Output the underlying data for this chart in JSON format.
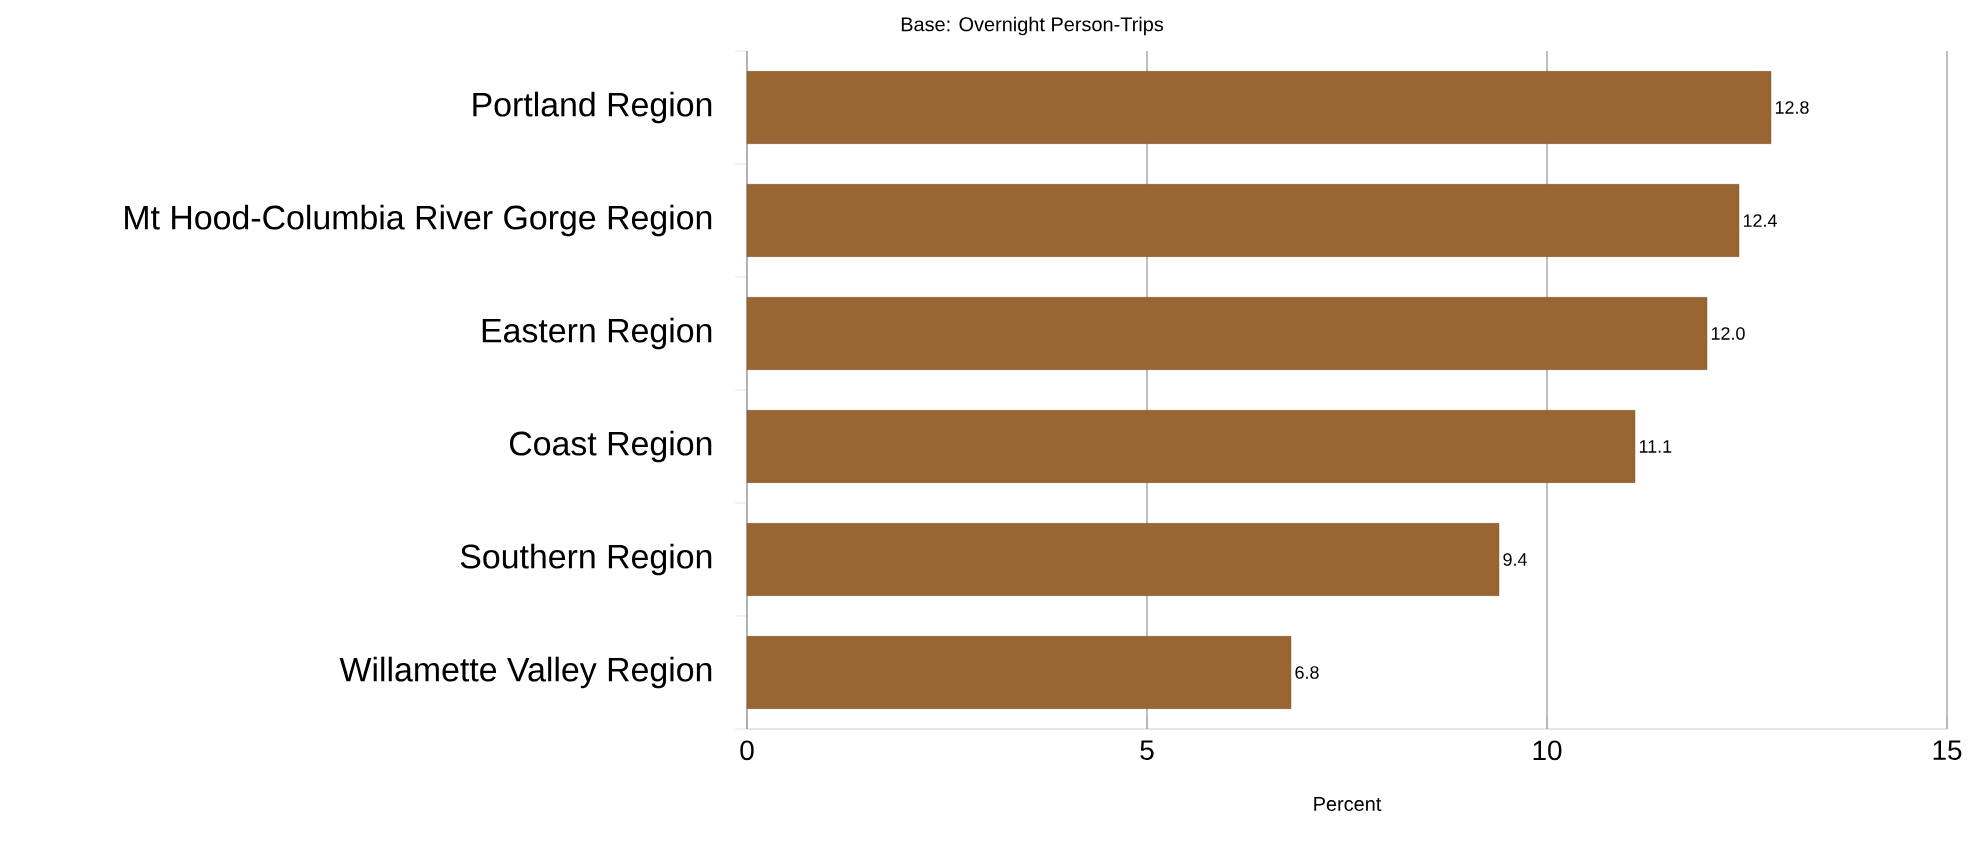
{
  "chart_data": {
    "type": "bar",
    "orientation": "horizontal",
    "subtitle": "Base: Overnight Person-Trips",
    "xlabel": "Percent",
    "categories": [
      "Portland Region",
      "Mt Hood-Columbia River Gorge Region",
      "Eastern Region",
      "Coast Region",
      "Southern Region",
      "Willamette Valley Region"
    ],
    "values": [
      12.8,
      12.4,
      12.0,
      11.1,
      9.4,
      6.8
    ],
    "value_labels": [
      "12.8",
      "12.4",
      "12.0",
      "11.1",
      "9.4",
      "6.8"
    ],
    "color": "#996633",
    "xlim": [
      0,
      15
    ],
    "xticks": [
      0,
      5,
      10,
      15
    ],
    "grid": "x"
  }
}
